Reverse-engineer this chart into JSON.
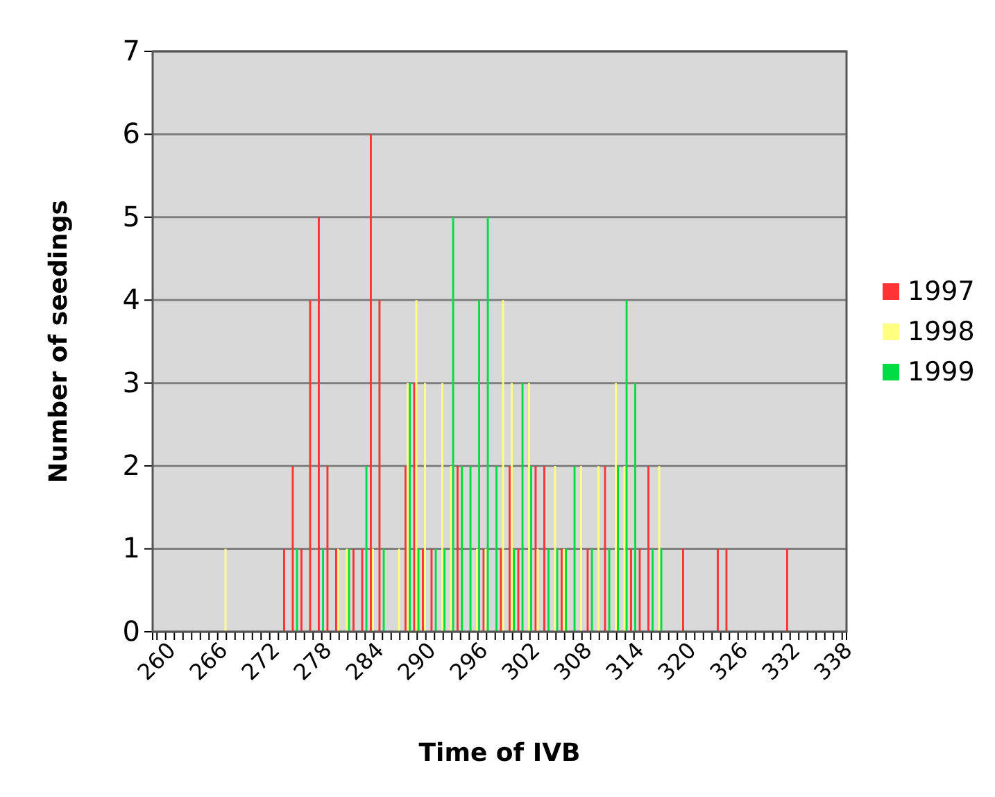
{
  "chart_data": {
    "type": "bar",
    "xlabel": "Time of IVB",
    "ylabel": "Number of seedings",
    "categories": [
      "260",
      null,
      null,
      null,
      null,
      null,
      "266",
      null,
      null,
      null,
      null,
      null,
      "272",
      null,
      null,
      null,
      null,
      null,
      "278",
      null,
      null,
      null,
      null,
      null,
      "284",
      null,
      null,
      null,
      null,
      null,
      "290",
      null,
      null,
      null,
      null,
      null,
      "296",
      null,
      null,
      null,
      null,
      null,
      "302",
      null,
      null,
      null,
      null,
      null,
      "308",
      null,
      null,
      null,
      null,
      null,
      "314",
      null,
      null,
      null,
      null,
      null,
      "320",
      null,
      null,
      null,
      null,
      null,
      "326",
      null,
      null,
      null,
      null,
      null,
      "332",
      null,
      null,
      null,
      null,
      null,
      "338",
      null
    ],
    "series": [
      {
        "name": "1997",
        "color": "#ff3333",
        "values": [
          0,
          0,
          0,
          0,
          0,
          0,
          0,
          0,
          0,
          0,
          0,
          0,
          0,
          0,
          0,
          1,
          2,
          1,
          4,
          5,
          2,
          1,
          0,
          1,
          1,
          6,
          4,
          0,
          0,
          2,
          3,
          1,
          1,
          0,
          0,
          2,
          0,
          0,
          1,
          0,
          1,
          2,
          1,
          0,
          2,
          2,
          0,
          1,
          0,
          0,
          1,
          0,
          2,
          0,
          0,
          1,
          1,
          2,
          0,
          0,
          0,
          1,
          0,
          0,
          0,
          1,
          1,
          0,
          0,
          0,
          0,
          0,
          0,
          1,
          0,
          0,
          0,
          0,
          0,
          0
        ]
      },
      {
        "name": "1998",
        "color": "#ffff80",
        "values": [
          0,
          0,
          0,
          0,
          0,
          0,
          0,
          0,
          1,
          0,
          0,
          0,
          0,
          0,
          0,
          0,
          0,
          0,
          0,
          0,
          0,
          1,
          1,
          0,
          0,
          1,
          0,
          0,
          1,
          3,
          4,
          3,
          0,
          3,
          2,
          0,
          0,
          1,
          1,
          0,
          4,
          3,
          0,
          3,
          1,
          0,
          2,
          1,
          0,
          2,
          0,
          2,
          0,
          3,
          2,
          0,
          0,
          0,
          2,
          0,
          0,
          0,
          0,
          0,
          0,
          0,
          0,
          0,
          0,
          0,
          0,
          0,
          0,
          0,
          0,
          0,
          0,
          0,
          0,
          0
        ]
      },
      {
        "name": "1999",
        "color": "#00dd44",
        "values": [
          0,
          0,
          0,
          0,
          0,
          0,
          0,
          0,
          0,
          0,
          0,
          0,
          0,
          0,
          0,
          0,
          1,
          0,
          0,
          1,
          0,
          0,
          1,
          0,
          2,
          0,
          1,
          0,
          0,
          3,
          1,
          0,
          1,
          1,
          5,
          2,
          2,
          4,
          5,
          2,
          0,
          1,
          3,
          2,
          0,
          1,
          1,
          1,
          2,
          0,
          1,
          0,
          1,
          2,
          4,
          3,
          0,
          1,
          1,
          0,
          0,
          0,
          0,
          0,
          0,
          0,
          0,
          0,
          0,
          0,
          0,
          0,
          0,
          0,
          0,
          0,
          0,
          0,
          0,
          0
        ]
      }
    ],
    "ylim": [
      0,
      7
    ],
    "yticks": [
      0,
      1,
      2,
      3,
      4,
      5,
      6,
      7
    ],
    "grid": "y",
    "legend": "right"
  }
}
